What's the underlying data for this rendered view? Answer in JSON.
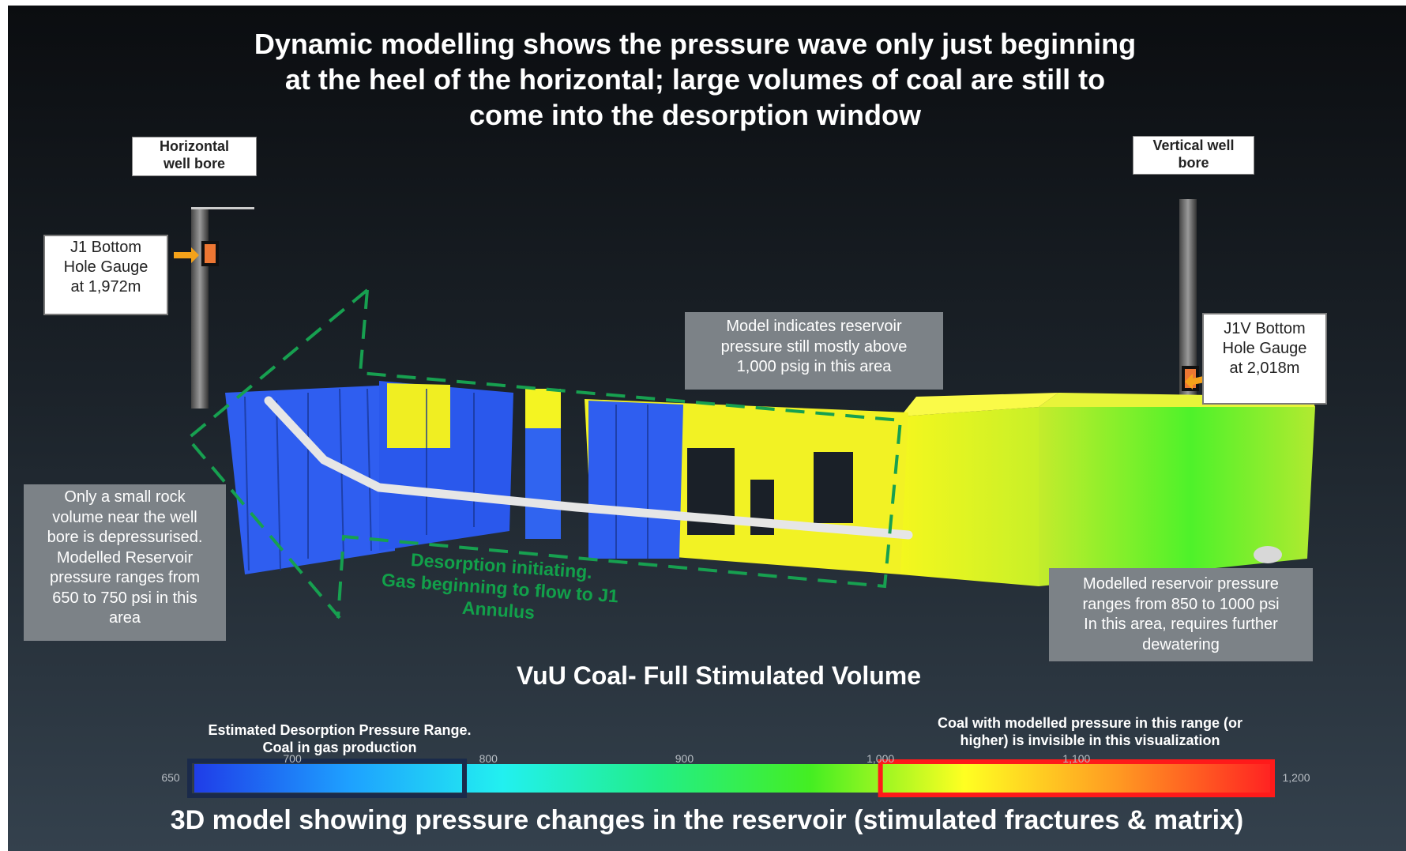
{
  "title": "Dynamic modelling shows the pressure wave only just beginning\nat the heel of the horizontal; large volumes of coal are still to\ncome into the desorption window",
  "labels": {
    "horizontal_well": "Horizontal\nwell bore",
    "vertical_well": "Vertical well\nbore",
    "j1_gauge": "J1 Bottom\nHole Gauge\nat 1,972m",
    "j1v_gauge": "J1V Bottom\nHole Gauge\nat 2,018m"
  },
  "notes": {
    "model_indicates": "Model indicates reservoir\npressure still mostly above\n1,000 psig in this area",
    "small_rock": "Only a small rock\nvolume near the well\nbore is depressurised.\nModelled Reservoir\npressure ranges from\n650 to 750 psi in this\narea",
    "modelled_850": "Modelled reservoir pressure\nranges from 850 to 1000 psi\nIn this area, requires further\ndewatering",
    "desorption": "Desorption initiating.\nGas beginning to flow to J1\nAnnulus"
  },
  "subtitle": "VuU Coal- Full Stimulated Volume",
  "legend": {
    "desorption_range": "Estimated Desorption Pressure Range.\nCoal in gas production",
    "invisible_range": "Coal with modelled pressure in this range (or\nhigher) is invisible in this visualization",
    "min": 650,
    "max": 1200,
    "ticks": [
      {
        "value": 650,
        "label": "650"
      },
      {
        "value": 700,
        "label": "700"
      },
      {
        "value": 800,
        "label": "800"
      },
      {
        "value": 900,
        "label": "900"
      },
      {
        "value": 1000,
        "label": "1,000"
      },
      {
        "value": 1100,
        "label": "1,100"
      },
      {
        "value": 1200,
        "label": "1,200"
      }
    ],
    "colors": [
      "#1f3de8",
      "#1ea0ff",
      "#22f0f0",
      "#22ee88",
      "#44ee22",
      "#ffff22",
      "#ff9922",
      "#ff2222"
    ]
  },
  "bottom_caption": "3D model showing pressure changes in the reservoir (stimulated fractures & matrix)"
}
